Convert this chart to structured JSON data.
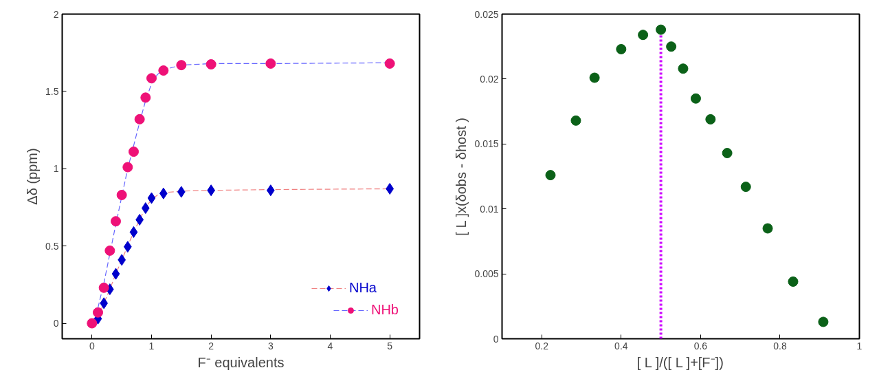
{
  "chart_data": [
    {
      "type": "scatter",
      "xlabel": "F⁻ equivalents",
      "ylabel": "Δδ (ppm)",
      "xlim": [
        -0.5,
        5.5
      ],
      "ylim": [
        -0.1,
        2
      ],
      "xticks": [
        0,
        1,
        2,
        3,
        4,
        5
      ],
      "yticks": [
        0,
        0.5,
        1,
        1.5,
        2
      ],
      "grid": false,
      "legend": "bottom right",
      "series": [
        {
          "type": "line",
          "color": "#f08080",
          "line_style": "dashed",
          "x": [
            0,
            0.1,
            0.2,
            0.3,
            0.4,
            0.5,
            0.6,
            0.7,
            0.8,
            0.9,
            1.0,
            1.1,
            1.2,
            1.5,
            2,
            3,
            5
          ],
          "values": [
            0,
            0.04,
            0.13,
            0.22,
            0.32,
            0.41,
            0.5,
            0.59,
            0.67,
            0.75,
            0.8,
            0.83,
            0.845,
            0.855,
            0.86,
            0.865,
            0.87
          ]
        },
        {
          "type": "line",
          "color": "#6666ff",
          "line_style": "dashed",
          "x": [
            0,
            0.1,
            0.2,
            0.3,
            0.4,
            0.5,
            0.6,
            0.7,
            0.8,
            0.9,
            1.0,
            1.1,
            1.2,
            1.5,
            2,
            3,
            5
          ],
          "values": [
            0,
            0.1,
            0.26,
            0.45,
            0.64,
            0.82,
            1.0,
            1.15,
            1.3,
            1.44,
            1.55,
            1.61,
            1.64,
            1.67,
            1.68,
            1.68,
            1.685
          ]
        },
        {
          "name": "NHa",
          "type": "scatter",
          "marker": "diamond",
          "color": "#0000cc",
          "x": [
            0.1,
            0.2,
            0.3,
            0.4,
            0.5,
            0.6,
            0.7,
            0.8,
            0.9,
            1.0,
            1.2,
            1.5,
            2,
            3,
            5
          ],
          "values": [
            0.03,
            0.13,
            0.22,
            0.32,
            0.41,
            0.495,
            0.59,
            0.67,
            0.745,
            0.81,
            0.84,
            0.85,
            0.86,
            0.86,
            0.87
          ]
        },
        {
          "name": "NHb",
          "type": "scatter",
          "marker": "circle",
          "color": "#ee1177",
          "x": [
            0,
            0.1,
            0.2,
            0.3,
            0.4,
            0.5,
            0.6,
            0.7,
            0.8,
            0.9,
            1.0,
            1.2,
            1.5,
            2,
            3,
            5
          ],
          "values": [
            0,
            0.07,
            0.23,
            0.47,
            0.66,
            0.83,
            1.01,
            1.11,
            1.32,
            1.46,
            1.585,
            1.635,
            1.67,
            1.675,
            1.68,
            1.68
          ]
        }
      ]
    },
    {
      "type": "scatter",
      "xlabel": "[ L ]/([ L ]+[F⁻])",
      "ylabel": "[ L ]x(δobs - δhost )",
      "xlim": [
        0.1,
        1
      ],
      "ylim": [
        0,
        0.025
      ],
      "xticks": [
        0.2,
        0.4,
        0.6,
        0.8,
        1
      ],
      "yticks": [
        0,
        0.005,
        0.01,
        0.015,
        0.02,
        0.025
      ],
      "grid": false,
      "marker": "circle",
      "ref_lines": [
        {
          "axis": "x",
          "value": 0.5,
          "color": "#cc00ff",
          "line_style": "dotted"
        }
      ],
      "series": [
        {
          "color": "#0b6118",
          "x": [
            0.222,
            0.286,
            0.333,
            0.4,
            0.455,
            0.5,
            0.526,
            0.556,
            0.588,
            0.625,
            0.667,
            0.714,
            0.769,
            0.833,
            0.909
          ],
          "values": [
            0.0126,
            0.0168,
            0.0201,
            0.0223,
            0.0234,
            0.0238,
            0.0225,
            0.0208,
            0.0185,
            0.0169,
            0.0143,
            0.0117,
            0.0085,
            0.0044,
            0.0013
          ]
        }
      ]
    }
  ]
}
